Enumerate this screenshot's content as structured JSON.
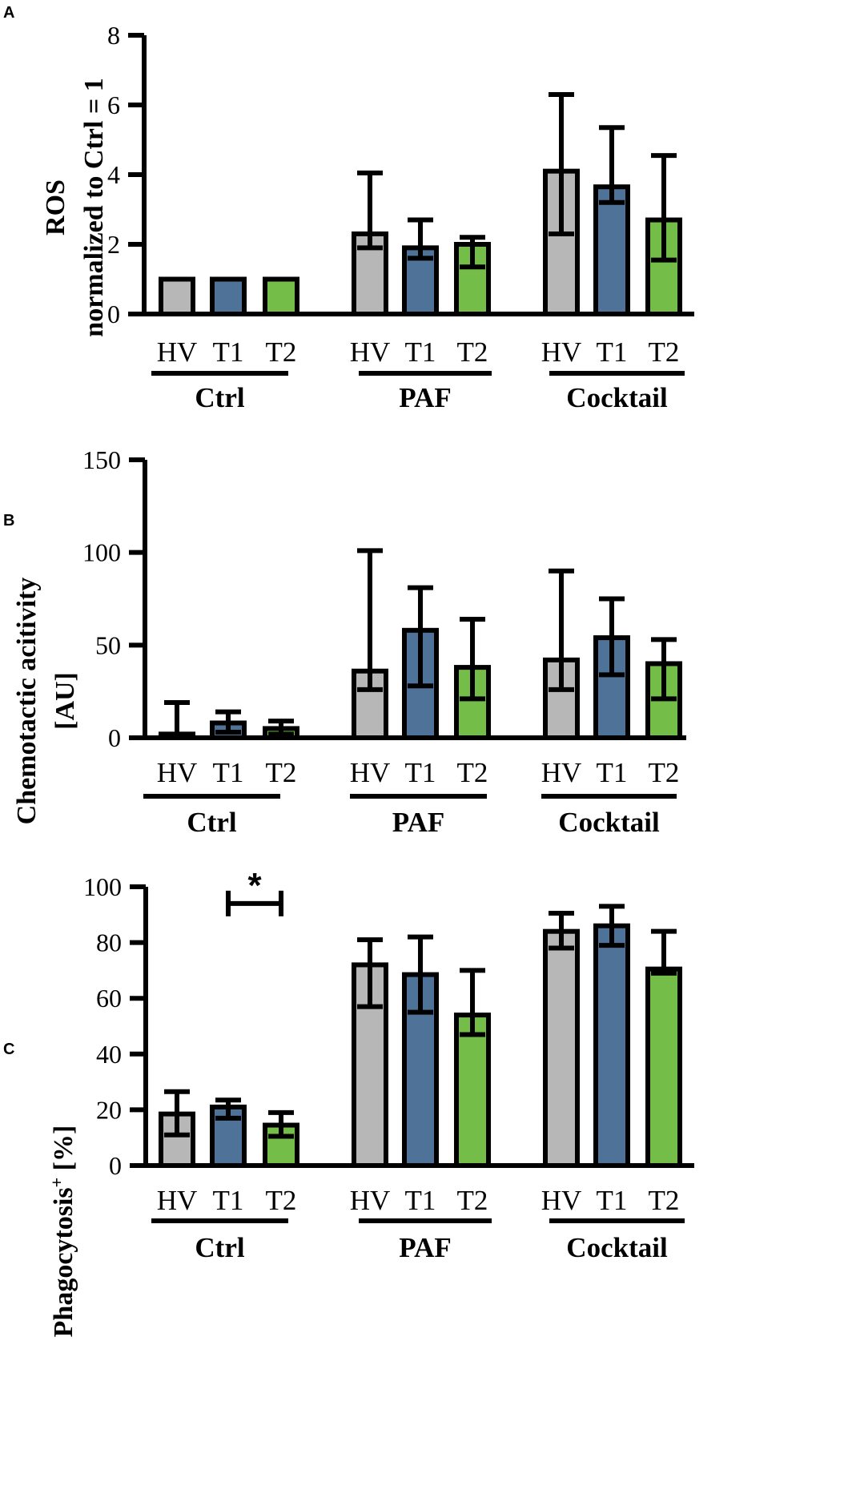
{
  "colors": {
    "HV": "#b7b7b7",
    "T1": "#4f7299",
    "T2": "#73bd48",
    "stroke": "#000000"
  },
  "chart_data": [
    {
      "panel": "A",
      "type": "bar",
      "ylabel_lines": [
        "ROS",
        "normalized to Ctrl = 1"
      ],
      "ylim": [
        0,
        8
      ],
      "yticks": [
        0,
        2,
        4,
        6,
        8
      ],
      "groups": [
        {
          "label": "Ctrl",
          "bars": [
            {
              "category": "HV",
              "value": 1.0,
              "err_low": 1.0,
              "err_high": 1.0
            },
            {
              "category": "T1",
              "value": 1.0,
              "err_low": 1.0,
              "err_high": 1.0
            },
            {
              "category": "T2",
              "value": 1.0,
              "err_low": 1.0,
              "err_high": 1.0
            }
          ]
        },
        {
          "label": "PAF",
          "bars": [
            {
              "category": "HV",
              "value": 2.3,
              "err_low": 1.9,
              "err_high": 4.05
            },
            {
              "category": "T1",
              "value": 1.9,
              "err_low": 1.6,
              "err_high": 2.7
            },
            {
              "category": "T2",
              "value": 2.0,
              "err_low": 1.35,
              "err_high": 2.2
            }
          ]
        },
        {
          "label": "Cocktail",
          "bars": [
            {
              "category": "HV",
              "value": 4.1,
              "err_low": 2.3,
              "err_high": 6.3
            },
            {
              "category": "T1",
              "value": 3.65,
              "err_low": 3.2,
              "err_high": 5.35
            },
            {
              "category": "T2",
              "value": 2.7,
              "err_low": 1.55,
              "err_high": 4.55
            }
          ]
        }
      ]
    },
    {
      "panel": "B",
      "type": "bar",
      "ylabel_lines": [
        "Chemotactic acitivity",
        "[AU]"
      ],
      "ylim": [
        0,
        150
      ],
      "yticks": [
        0,
        50,
        100,
        150
      ],
      "groups": [
        {
          "label": "Ctrl",
          "bars": [
            {
              "category": "HV",
              "value": 2,
              "err_low": 0,
              "err_high": 19
            },
            {
              "category": "T1",
              "value": 8,
              "err_low": 3,
              "err_high": 14
            },
            {
              "category": "T2",
              "value": 5,
              "err_low": 2,
              "err_high": 9
            }
          ]
        },
        {
          "label": "PAF",
          "bars": [
            {
              "category": "HV",
              "value": 36,
              "err_low": 26,
              "err_high": 101
            },
            {
              "category": "T1",
              "value": 58,
              "err_low": 28,
              "err_high": 81
            },
            {
              "category": "T2",
              "value": 38,
              "err_low": 21,
              "err_high": 64
            }
          ]
        },
        {
          "label": "Cocktail",
          "bars": [
            {
              "category": "HV",
              "value": 42,
              "err_low": 26,
              "err_high": 90
            },
            {
              "category": "T1",
              "value": 54,
              "err_low": 34,
              "err_high": 75
            },
            {
              "category": "T2",
              "value": 40,
              "err_low": 21,
              "err_high": 53
            }
          ]
        }
      ]
    },
    {
      "panel": "C",
      "type": "bar",
      "ylabel_main": "Phagocytosis",
      "ylabel_sup": "+",
      "ylabel_tail": " [%]",
      "ylim": [
        0,
        100
      ],
      "yticks": [
        0,
        20,
        40,
        60,
        80,
        100
      ],
      "significance": {
        "label": "*",
        "between": [
          "T1",
          "T2"
        ],
        "group": "Ctrl",
        "y": 94
      },
      "groups": [
        {
          "label": "Ctrl",
          "bars": [
            {
              "category": "HV",
              "value": 18.5,
              "err_low": 11,
              "err_high": 26.5
            },
            {
              "category": "T1",
              "value": 21,
              "err_low": 17,
              "err_high": 23.5
            },
            {
              "category": "T2",
              "value": 14.5,
              "err_low": 10.5,
              "err_high": 19
            }
          ]
        },
        {
          "label": "PAF",
          "bars": [
            {
              "category": "HV",
              "value": 72,
              "err_low": 57,
              "err_high": 81
            },
            {
              "category": "T1",
              "value": 68.5,
              "err_low": 55,
              "err_high": 82
            },
            {
              "category": "T2",
              "value": 54,
              "err_low": 47,
              "err_high": 70
            }
          ]
        },
        {
          "label": "Cocktail",
          "bars": [
            {
              "category": "HV",
              "value": 84,
              "err_low": 78,
              "err_high": 90.5
            },
            {
              "category": "T1",
              "value": 86,
              "err_low": 79,
              "err_high": 93
            },
            {
              "category": "T2",
              "value": 70.5,
              "err_low": 69,
              "err_high": 84
            }
          ]
        }
      ]
    }
  ]
}
